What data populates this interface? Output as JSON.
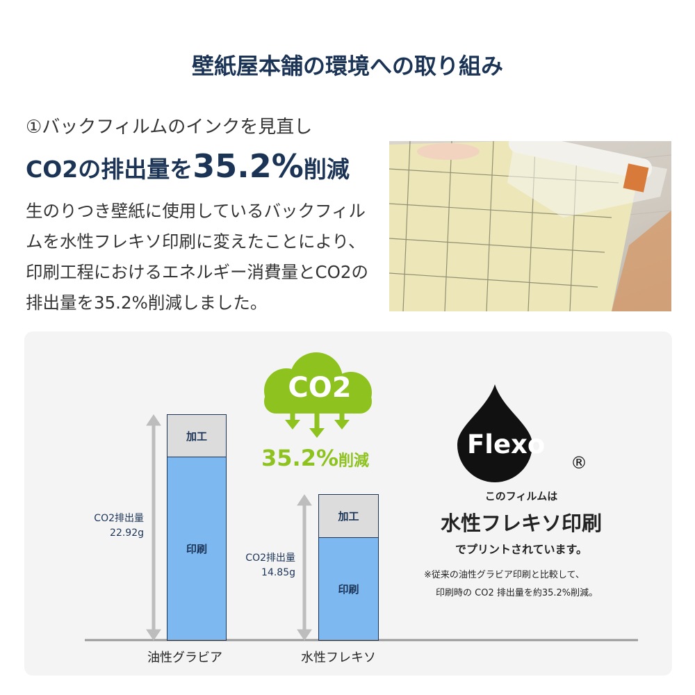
{
  "title": "壁紙屋本舗の環境への取り組み",
  "section": {
    "subtitle": "①バックフィルムのインクを見直し",
    "headline_pre": "CO2の排出量を",
    "headline_pct": "35.2%",
    "headline_post": "削減",
    "body": "生のりつき壁紙に使用しているバックフィルムを水性フレキソ印刷に変えたことにより、印刷工程におけるエネルギー消費量とCO2の排出量を35.2%削減しました。"
  },
  "photo": {
    "description_icon": "wallpaper-roll-photo"
  },
  "chart": {
    "bars": [
      {
        "category": "油性グラビア",
        "top_label": "加工",
        "bottom_label": "印刷",
        "total_label": "CO2排出量",
        "total_value": "22.92g"
      },
      {
        "category": "水性フレキソ",
        "top_label": "加工",
        "bottom_label": "印刷",
        "total_label": "CO2排出量",
        "total_value": "14.85g"
      }
    ],
    "cloud_text": "CO2",
    "reduction": "35.2%",
    "reduction_suffix": "削減"
  },
  "chart_data": {
    "type": "bar",
    "categories": [
      "油性グラビア",
      "水性フレキソ"
    ],
    "values": [
      22.92,
      14.85
    ],
    "unit": "g"
  },
  "flexo": {
    "logo": "Flexo",
    "registered": "®",
    "line1": "このフィルムは",
    "line2": "水性フレキソ印刷",
    "line3": "でプリントされています。",
    "note1": "※従来の油性グラビア印刷と比較して、",
    "note2": "印刷時の CO2 排出量を約35.2%削減。"
  },
  "colors": {
    "navy": "#1b3456",
    "green": "#8dc21f",
    "bar_blue": "#7db8f0",
    "bar_gray": "#dcdcdc"
  }
}
